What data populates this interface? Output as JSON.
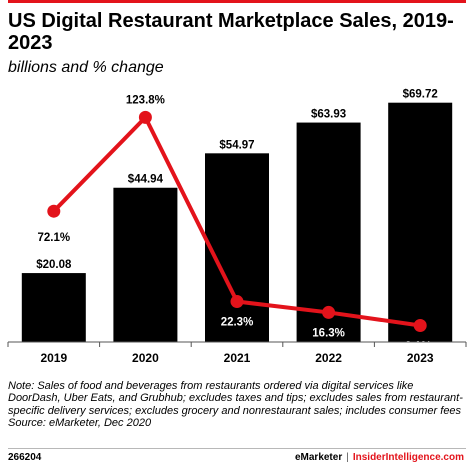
{
  "accent_color": "#e3131b",
  "bar_color": "#000000",
  "title": "US Digital Restaurant Marketplace Sales, 2019-2023",
  "subtitle": "billions and % change",
  "chart_data": {
    "type": "bar",
    "categories": [
      "2019",
      "2020",
      "2021",
      "2022",
      "2023"
    ],
    "series": [
      {
        "type": "bar",
        "values": [
          20.08,
          44.94,
          54.97,
          63.93,
          69.72
        ],
        "labels": [
          "$20.08",
          "$44.94",
          "$54.97",
          "$63.93",
          "$69.72"
        ]
      },
      {
        "type": "line",
        "values": [
          72.1,
          123.8,
          22.3,
          16.3,
          9.1
        ],
        "labels": [
          "72.1%",
          "123.8%",
          "22.3%",
          "16.3%",
          "9.1%"
        ]
      }
    ],
    "bar_ylim": [
      0,
      74
    ],
    "line_ylim": [
      0,
      140
    ],
    "grid": false,
    "legend": "none"
  },
  "note": "Note: Sales of food and beverages from restaurants ordered via digital services like DoorDash, Uber Eats, and Grubhub; excludes taxes and tips; excludes sales from restaurant-specific delivery services; excludes grocery and nonrestaurant sales; includes consumer fees",
  "source": "Source: eMarketer, Dec 2020",
  "footer": {
    "chart_id": "266204",
    "brand": "eMarketer",
    "separator": "|",
    "partner": "InsiderIntelligence.com"
  }
}
